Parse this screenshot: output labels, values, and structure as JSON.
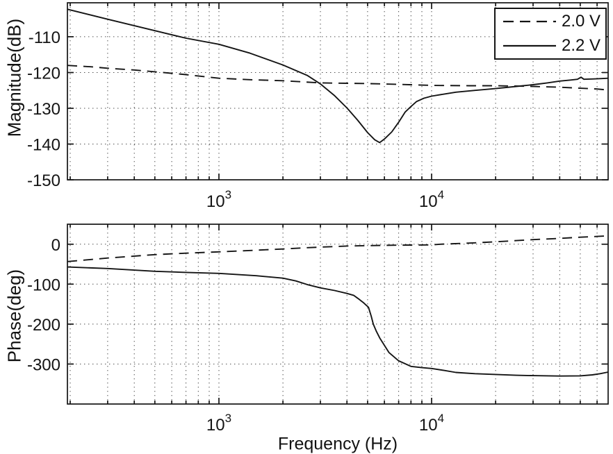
{
  "figure": {
    "background": "#ffffff",
    "stroke_color": "#141414",
    "grid_color": "#464646"
  },
  "legend": {
    "position": "upper-right",
    "entries": [
      {
        "label": "2.0 V",
        "style": "dashed"
      },
      {
        "label": "2.2 V",
        "style": "solid"
      }
    ]
  },
  "chart_data": [
    {
      "type": "line",
      "panel": "magnitude",
      "title": "",
      "xlabel": "",
      "ylabel": "Magnitude(dB)",
      "x_scale": "log",
      "xlim": [
        194,
        67600
      ],
      "ylim": [
        -150,
        -100.5
      ],
      "yticks": [
        -110,
        -120,
        -130,
        -140,
        -150
      ],
      "xticks": [
        1000,
        10000
      ],
      "xtick_labels": [
        "10^3",
        "10^4"
      ],
      "grid": "dotted, major + minor-x",
      "legend_position": "upper right",
      "series": [
        {
          "name": "2.0 V",
          "style": "dashed",
          "points": [
            [
              194,
              -118.0
            ],
            [
              250,
              -118.4
            ],
            [
              300,
              -118.8
            ],
            [
              400,
              -119.3
            ],
            [
              500,
              -119.8
            ],
            [
              700,
              -120.6
            ],
            [
              1000,
              -121.6
            ],
            [
              1400,
              -122.0
            ],
            [
              2000,
              -122.3
            ],
            [
              3000,
              -122.9
            ],
            [
              5000,
              -123.1
            ],
            [
              7000,
              -123.3
            ],
            [
              10000,
              -123.6
            ],
            [
              15000,
              -123.7
            ],
            [
              20000,
              -123.7
            ],
            [
              25000,
              -123.8
            ],
            [
              30000,
              -123.9
            ],
            [
              40000,
              -124.1
            ],
            [
              50000,
              -124.4
            ],
            [
              60000,
              -124.6
            ],
            [
              67600,
              -124.9
            ]
          ]
        },
        {
          "name": "2.2 V",
          "style": "solid",
          "points": [
            [
              194,
              -102.3
            ],
            [
              300,
              -105.1
            ],
            [
              500,
              -108.3
            ],
            [
              700,
              -110.4
            ],
            [
              1000,
              -112.1
            ],
            [
              1400,
              -114.6
            ],
            [
              2000,
              -117.9
            ],
            [
              2600,
              -120.8
            ],
            [
              3000,
              -123.2
            ],
            [
              3500,
              -126.5
            ],
            [
              4000,
              -129.9
            ],
            [
              4500,
              -133.4
            ],
            [
              5000,
              -136.8
            ],
            [
              5400,
              -138.8
            ],
            [
              5700,
              -139.6
            ],
            [
              6000,
              -138.6
            ],
            [
              6500,
              -136.6
            ],
            [
              7000,
              -133.9
            ],
            [
              7500,
              -131.1
            ],
            [
              8000,
              -129.5
            ],
            [
              8500,
              -128.1
            ],
            [
              9200,
              -127.2
            ],
            [
              10000,
              -126.6
            ],
            [
              11500,
              -126.0
            ],
            [
              13000,
              -125.5
            ],
            [
              16000,
              -125.0
            ],
            [
              20000,
              -124.5
            ],
            [
              25000,
              -123.9
            ],
            [
              30000,
              -123.4
            ],
            [
              35000,
              -122.9
            ],
            [
              40000,
              -122.4
            ],
            [
              45000,
              -122.1
            ],
            [
              48500,
              -121.9
            ],
            [
              50400,
              -121.3
            ],
            [
              52000,
              -121.9
            ],
            [
              58000,
              -121.8
            ],
            [
              63000,
              -121.7
            ],
            [
              67600,
              -121.6
            ]
          ]
        }
      ]
    },
    {
      "type": "line",
      "panel": "phase",
      "title": "",
      "xlabel": "Frequency (Hz)",
      "ylabel": "Phase(deg)",
      "x_scale": "log",
      "xlim": [
        194,
        67600
      ],
      "ylim": [
        -400,
        50
      ],
      "yticks": [
        0,
        -100,
        -200,
        -300
      ],
      "xticks": [
        1000,
        10000
      ],
      "xtick_labels": [
        "10^3",
        "10^4"
      ],
      "grid": "dotted, major + minor-x",
      "series": [
        {
          "name": "2.0 V",
          "style": "dashed",
          "points": [
            [
              194,
              -43.5
            ],
            [
              300,
              -34.7
            ],
            [
              500,
              -26.1
            ],
            [
              700,
              -22.5
            ],
            [
              1000,
              -19.1
            ],
            [
              1500,
              -15.0
            ],
            [
              2000,
              -12.0
            ],
            [
              2600,
              -8.7
            ],
            [
              4000,
              -4.5
            ],
            [
              6000,
              -2.8
            ],
            [
              8000,
              -2.2
            ],
            [
              10000,
              -1.7
            ],
            [
              11000,
              0.0
            ],
            [
              14000,
              2.0
            ],
            [
              16000,
              3.5
            ],
            [
              20000,
              6.0
            ],
            [
              25000,
              9.0
            ],
            [
              30000,
              11.5
            ],
            [
              40000,
              14.5
            ],
            [
              50000,
              17.5
            ],
            [
              60000,
              19.5
            ],
            [
              67600,
              21.0
            ]
          ]
        },
        {
          "name": "2.2 V",
          "style": "solid",
          "points": [
            [
              194,
              -57.0
            ],
            [
              300,
              -60.8
            ],
            [
              500,
              -67.8
            ],
            [
              700,
              -70.5
            ],
            [
              1000,
              -73.0
            ],
            [
              1500,
              -79.0
            ],
            [
              2000,
              -85.0
            ],
            [
              2300,
              -92.0
            ],
            [
              2600,
              -101.0
            ],
            [
              3000,
              -109.4
            ],
            [
              3500,
              -116.0
            ],
            [
              4000,
              -123.3
            ],
            [
              4300,
              -128.0
            ],
            [
              4500,
              -135.5
            ],
            [
              4800,
              -147.0
            ],
            [
              5050,
              -158.0
            ],
            [
              5200,
              -180.0
            ],
            [
              5320,
              -200.0
            ],
            [
              5500,
              -218.0
            ],
            [
              5700,
              -234.5
            ],
            [
              6300,
              -271.0
            ],
            [
              7000,
              -292.0
            ],
            [
              8000,
              -305.8
            ],
            [
              9000,
              -309.0
            ],
            [
              10000,
              -311.0
            ],
            [
              11500,
              -316.0
            ],
            [
              13000,
              -321.0
            ],
            [
              16000,
              -324.0
            ],
            [
              20000,
              -326.0
            ],
            [
              25000,
              -328.0
            ],
            [
              30000,
              -329.0
            ],
            [
              40000,
              -330.0
            ],
            [
              50000,
              -329.5
            ],
            [
              57000,
              -327.0
            ],
            [
              62000,
              -324.0
            ],
            [
              67600,
              -320.0
            ]
          ]
        }
      ]
    }
  ]
}
